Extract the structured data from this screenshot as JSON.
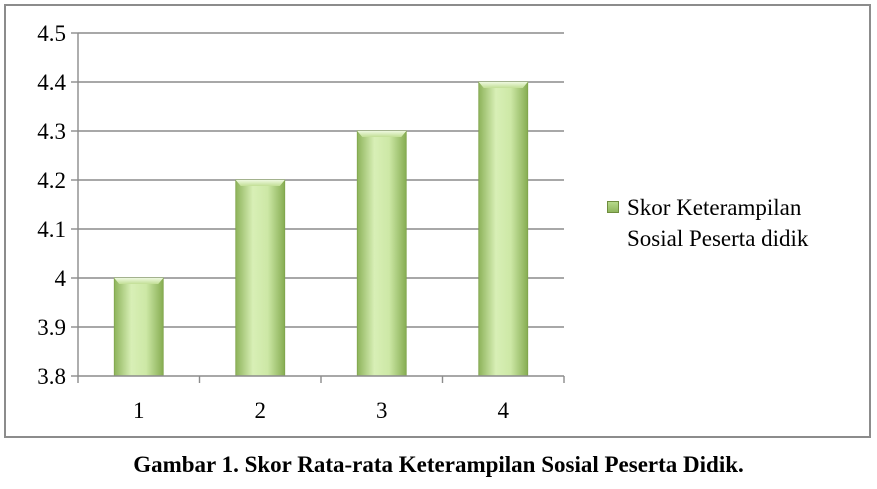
{
  "chart_data": {
    "type": "bar",
    "categories": [
      "1",
      "2",
      "3",
      "4"
    ],
    "series": [
      {
        "name": "Skor Keterampilan Sosial Peserta didik",
        "values": [
          4.0,
          4.2,
          4.3,
          4.4
        ]
      }
    ],
    "ylim": [
      3.8,
      4.5
    ],
    "yticks": [
      "3.8",
      "3.9",
      "4",
      "4.1",
      "4.2",
      "4.3",
      "4.4",
      "4.5"
    ],
    "grid": true,
    "legend_position": "right",
    "colors": {
      "bar_light": "#d8efb6",
      "bar_dark": "#8db35a",
      "gridline": "#8c8c8c"
    }
  },
  "legend": {
    "line1": "Skor Keterampilan",
    "line2": "Sosial Peserta didik"
  },
  "caption": "Gambar 1. Skor Rata-rata Keterampilan Sosial Peserta Didik."
}
